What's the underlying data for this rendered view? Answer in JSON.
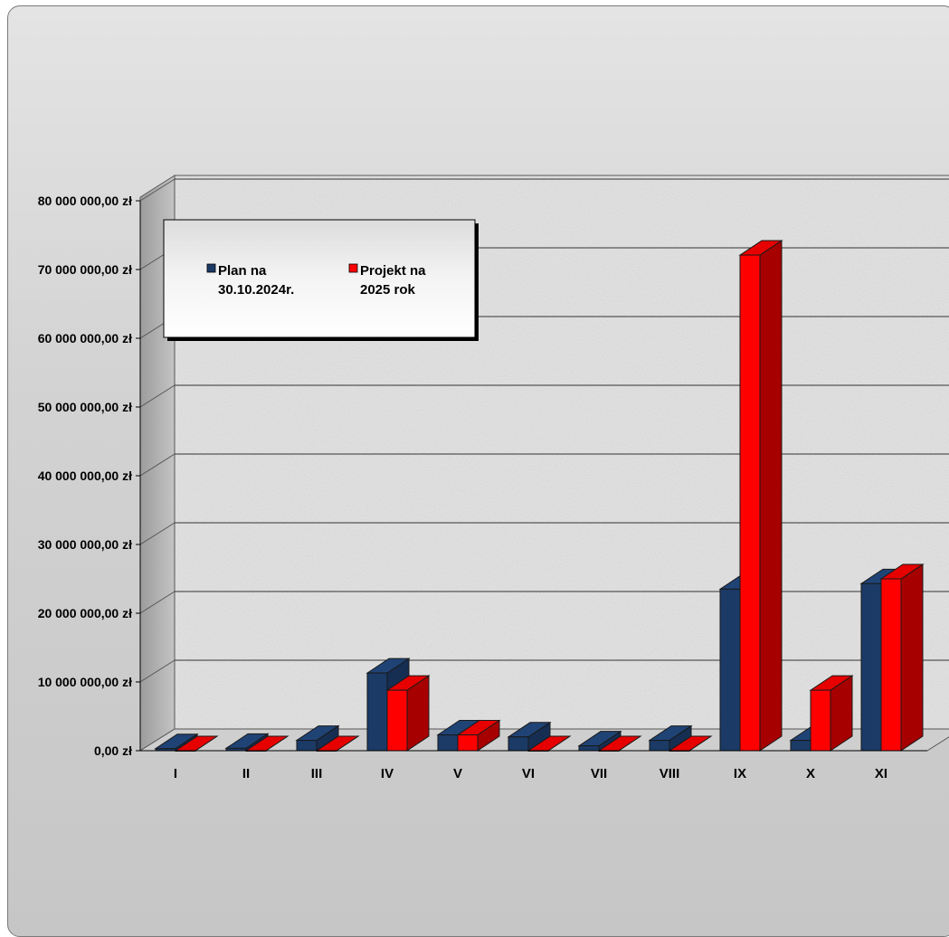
{
  "chart_data": {
    "type": "bar",
    "categories": [
      "I",
      "II",
      "III",
      "IV",
      "V",
      "VI",
      "VII",
      "VIII",
      "IX",
      "X",
      "XI"
    ],
    "series": [
      {
        "name": "Plan na 30.10.2024r.",
        "legend_lines": [
          "Plan na",
          "30.10.2024r."
        ],
        "color": "#1b3a66",
        "values": [
          300000,
          350000,
          1500000,
          11300000,
          2300000,
          2000000,
          700000,
          1500000,
          23500000,
          1500000,
          24300000
        ]
      },
      {
        "name": "Projekt na 2025 rok",
        "legend_lines": [
          "Projekt na",
          "2025 rok"
        ],
        "color": "#ff0000",
        "values": [
          0,
          0,
          0,
          8800000,
          2300000,
          0,
          0,
          0,
          72100000,
          8800000,
          25000000
        ]
      }
    ],
    "y_tick_labels": [
      "0,00 zł",
      "10 000 000,00 zł",
      "20 000 000,00 zł",
      "30 000 000,00 zł",
      "40 000 000,00 zł",
      "50 000 000,00 zł",
      "60 000 000,00 zł",
      "70 000 000,00 zł",
      "80 000 000,00 zł"
    ],
    "ylim": [
      0,
      80000000
    ],
    "grid": true,
    "legend_position": "top-left",
    "style": "3d-clustered-column"
  }
}
